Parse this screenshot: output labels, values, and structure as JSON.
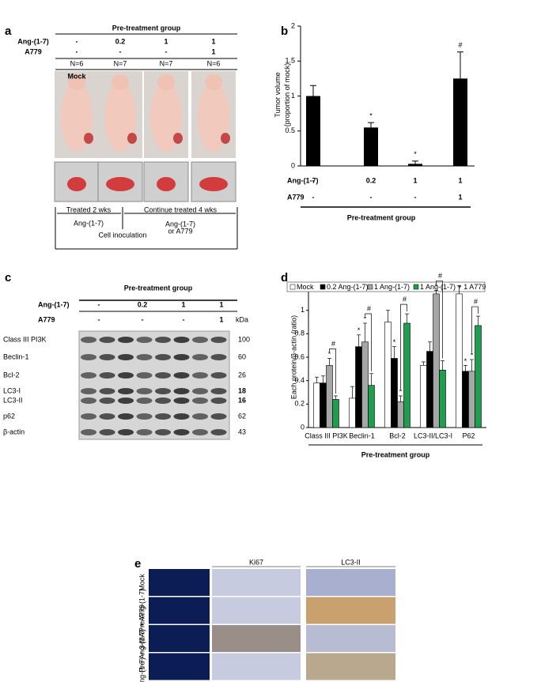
{
  "panel_labels": [
    "a",
    "b",
    "c",
    "d",
    "e"
  ],
  "panel_a": {
    "header": "Pre-treatment group",
    "rows": [
      {
        "label": "Ang-(1-7)",
        "cells": [
          "-",
          "0.2",
          "1",
          "1"
        ]
      },
      {
        "label": "A779",
        "cells": [
          "-",
          "-",
          "-",
          "1"
        ]
      }
    ],
    "counts": [
      "N=6",
      "N=7",
      "N=7",
      "N=6"
    ],
    "photo_label": "Mock",
    "timeline": {
      "phase1": "Treated 2 wks",
      "phase2": "Continue treated 4 wks",
      "phase1_drug": "Ang-(1-7)",
      "phase2_drug": [
        "Ang-(1-7)",
        "or A779"
      ],
      "event": "Cell inoculation"
    }
  },
  "chart_data": [
    {
      "type": "bar",
      "y_label": [
        "Tumor volume",
        "(proportion of mock)"
      ],
      "color": "#000000",
      "values": [
        1.0,
        0.55,
        0.03,
        1.25
      ],
      "errors": [
        0.15,
        0.07,
        0.04,
        0.38
      ],
      "markers": [
        null,
        "*",
        "*",
        "#"
      ],
      "ylim": [
        0,
        2
      ],
      "yticks": [
        0,
        0.5,
        1,
        1.5,
        2
      ],
      "condition_rows": [
        {
          "label": "Ang-(1-7)",
          "cells": [
            "-",
            "0.2",
            "1",
            "1"
          ]
        },
        {
          "label": "A779",
          "cells": [
            "-",
            "-",
            "-",
            "1"
          ]
        }
      ],
      "group_label": "Pre-treatment group"
    },
    {
      "type": "grouped_bar",
      "y_label": "Each protein/β-actin (ratio)",
      "x_label": "Pre-treatment group",
      "categories": [
        "Class III PI3K",
        "Beclin-1",
        "Bcl-2",
        "LC3-II/LC3-I",
        "P62"
      ],
      "series": [
        {
          "name": "Mock",
          "color": "#ffffff",
          "values": [
            0.38,
            0.25,
            0.9,
            0.53,
            1.14
          ],
          "errors": [
            0.05,
            0.1,
            0.1,
            0.03,
            0.07
          ]
        },
        {
          "name": "0.2 Ang-(1-7)",
          "color": "#000000",
          "values": [
            0.38,
            0.69,
            0.59,
            0.65,
            0.48
          ],
          "errors": [
            0.06,
            0.1,
            0.1,
            0.08,
            0.05
          ],
          "markers": [
            null,
            "*",
            "*",
            null,
            "*"
          ]
        },
        {
          "name": "1 Ang-(1-7)",
          "color": "#a6a6a6",
          "values": [
            0.53,
            0.73,
            0.22,
            1.14,
            0.48
          ],
          "errors": [
            0.06,
            0.16,
            0.05,
            0.03,
            0.1
          ],
          "markers": [
            "*",
            "*",
            "*",
            "*",
            "*"
          ]
        },
        {
          "name": "1 Ang-(1-7) + 1 A779",
          "color": "#1e9e4e",
          "values": [
            0.24,
            0.36,
            0.89,
            0.49,
            0.87
          ],
          "errors": [
            0.03,
            0.1,
            0.08,
            0.08,
            0.08
          ]
        }
      ],
      "brackets": [
        "#",
        "#",
        "#",
        "#",
        "#"
      ],
      "ylim": [
        0,
        1.2
      ],
      "yticks": [
        0,
        0.2,
        0.4,
        0.6,
        0.8,
        1,
        1.2
      ],
      "legend": "top"
    }
  ],
  "panel_c": {
    "header": "Pre-treatment group",
    "rows": [
      {
        "label": "Ang-(1-7)",
        "cells": [
          "-",
          "0.2",
          "1",
          "1"
        ]
      },
      {
        "label": "A779",
        "cells": [
          "-",
          "-",
          "-",
          "1"
        ]
      }
    ],
    "unit": "kDa",
    "blots": [
      {
        "label": "Class III PI3K",
        "kda": 100
      },
      {
        "label": "Beclin-1",
        "kda": 60
      },
      {
        "label": "Bcl-2",
        "kda": 26
      },
      {
        "label": "LC3-I",
        "kda": 18
      },
      {
        "label": "LC3-II",
        "kda": 16
      },
      {
        "label": "p62",
        "kda": 62
      },
      {
        "label": "β-actin",
        "kda": 43
      }
    ]
  },
  "panel_e": {
    "columns": [
      "Ki67",
      "LC3-II"
    ],
    "rows": [
      "Mock",
      "Pre-Ang-(1-7)",
      "Pre-Ang-(1-7) + A779",
      "Pre-Ang-(1-7) + 3-MA"
    ]
  }
}
